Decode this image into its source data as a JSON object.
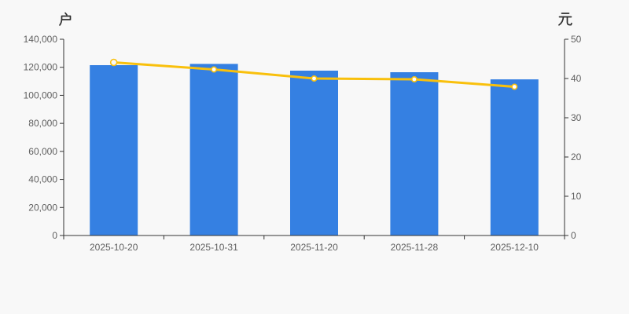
{
  "page": {
    "background_color": "#f8f8f8"
  },
  "chart_data": {
    "type": "bar",
    "subtype": "bar-with-line-dual-axis",
    "title": "",
    "categories": [
      "2025-10-20",
      "2025-10-31",
      "2025-11-20",
      "2025-11-28",
      "2025-12-10"
    ],
    "series": [
      {
        "unit": "户",
        "type": "bar",
        "yaxis": "left",
        "color": "#3580e2",
        "values": [
          121500,
          122400,
          117600,
          116500,
          111400
        ]
      },
      {
        "unit": "元",
        "type": "line",
        "yaxis": "right",
        "color": "#f9c00c",
        "marker_fill": "#ffffff",
        "values": [
          44.1,
          42.3,
          40.0,
          39.8,
          37.9
        ]
      }
    ],
    "left_axis": {
      "name": "户",
      "min": 0,
      "max": 140000,
      "tick_interval": 20000,
      "tick_labels": [
        "0",
        "20,000",
        "40,000",
        "60,000",
        "80,000",
        "100,000",
        "120,000",
        "140,000"
      ]
    },
    "right_axis": {
      "name": "元",
      "min": 0,
      "max": 50,
      "tick_interval": 10,
      "tick_labels": [
        "0",
        "10",
        "20",
        "30",
        "40",
        "50"
      ]
    },
    "grid": false,
    "legend": null,
    "axis_line_color": "#333333",
    "label_color": "#5f5f5f"
  }
}
